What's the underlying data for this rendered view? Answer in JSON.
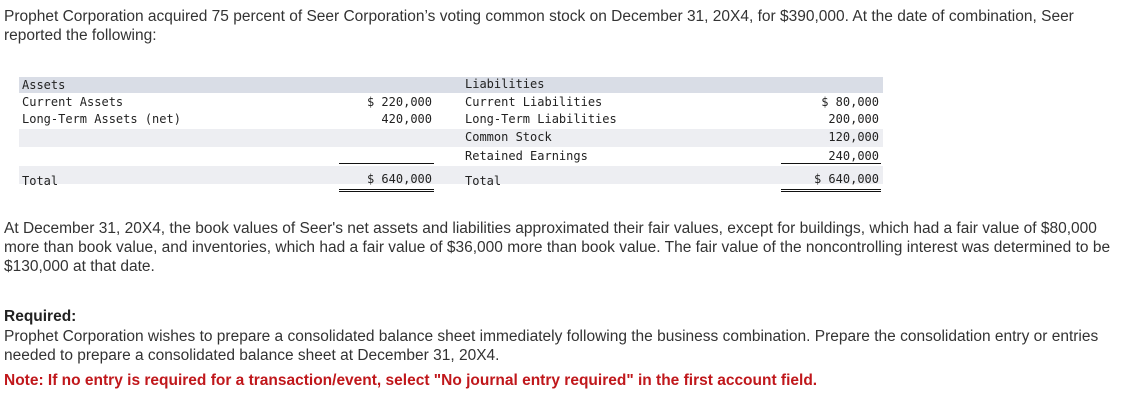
{
  "intro": "Prophet Corporation acquired 75 percent of Seer Corporation’s voting common stock on December 31, 20X4, for $390,000. At the date of combination, Seer reported the following:",
  "balance_sheet": {
    "assets_header": "Assets",
    "liabilities_header": "Liabilities",
    "current_assets_label": "Current Assets",
    "current_assets_value": "$ 220,000",
    "long_term_assets_label": "Long-Term Assets (net)",
    "long_term_assets_value": "420,000",
    "current_liabilities_label": "Current Liabilities",
    "current_liabilities_value": "$ 80,000",
    "long_term_liabilities_label": "Long-Term Liabilities",
    "long_term_liabilities_value": "200,000",
    "common_stock_label": "Common Stock",
    "common_stock_value": "120,000",
    "retained_earnings_label": "Retained Earnings",
    "retained_earnings_value": "240,000",
    "total_assets_label": "Total",
    "total_assets_value": "$ 640,000",
    "total_liabilities_label": "Total",
    "total_liabilities_value": "$ 640,000"
  },
  "fair_value_text": "At December 31, 20X4, the book values of Seer's net assets and liabilities approximated their fair values, except for buildings, which had a fair value of $80,000 more than book value, and inventories, which had a fair value of $36,000 more than book value. The fair value of the noncontrolling interest was determined to be $130,000 at that date.",
  "required_label": "Required:",
  "required_text": "Prophet Corporation wishes to prepare a consolidated balance sheet immediately following the business combination. Prepare the consolidation entry or entries needed to prepare a consolidated balance sheet at December 31, 20X4.",
  "note": "Note: If no entry is required for a transaction/event, select \"No journal entry required\" in the first account field.",
  "colors": {
    "header_band": "#d9dde6",
    "row_band": "#edeef2",
    "note_red": "#c0171b"
  }
}
